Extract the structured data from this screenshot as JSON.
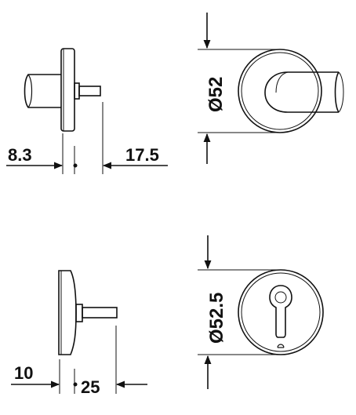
{
  "drawing": {
    "top_view": {
      "dim_left": "8.3",
      "dim_right": "17.5",
      "diameter": "Ø52"
    },
    "bottom_view": {
      "dim_left": "10",
      "dim_right": "25",
      "diameter": "Ø52.5"
    }
  },
  "colors": {
    "line": "#111111",
    "background": "#ffffff"
  }
}
